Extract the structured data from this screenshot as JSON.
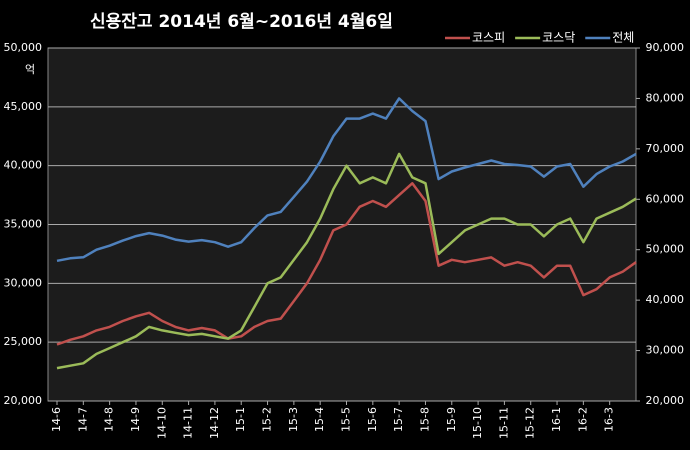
{
  "chart_data": {
    "type": "line",
    "title": "신용잔고 2014년 6월~2016년 4월6일",
    "ylabel": "억",
    "categories": [
      "14-6",
      null,
      "14-7",
      null,
      "14-8",
      null,
      "14-9",
      null,
      "14-10",
      null,
      "14-11",
      null,
      "14-12",
      null,
      "15-1",
      null,
      "15-2",
      null,
      "15-3",
      null,
      "15-4",
      null,
      "15-5",
      null,
      "15-6",
      null,
      "15-7",
      null,
      "15-8",
      null,
      "15-9",
      null,
      "15-10",
      null,
      "15-11",
      null,
      "15-12",
      null,
      "16-1",
      null,
      "16-2",
      null,
      "16-3",
      null,
      null
    ],
    "series": [
      {
        "name": "코스피",
        "color": "#c0504d",
        "values": [
          24800,
          25200,
          25500,
          26000,
          26300,
          26800,
          27200,
          27500,
          26800,
          26300,
          26000,
          26200,
          26000,
          25300,
          25500,
          26300,
          26800,
          27000,
          28500,
          30000,
          32000,
          34500,
          35000,
          36500,
          37000,
          36500,
          37500,
          38500,
          37000,
          31500,
          32000,
          31800,
          32000,
          32200,
          31500,
          31800,
          31500,
          30500,
          31500,
          31500,
          29000,
          29500,
          30500,
          31000,
          31800
        ]
      },
      {
        "name": "코스닥",
        "color": "#9bbb59",
        "values": [
          22800,
          23000,
          23200,
          24000,
          24500,
          25000,
          25500,
          26300,
          26000,
          25800,
          25600,
          25700,
          25500,
          25300,
          26000,
          28000,
          30000,
          30500,
          32000,
          33500,
          35500,
          38000,
          40000,
          38500,
          39000,
          38500,
          41000,
          39000,
          38500,
          32500,
          33500,
          34500,
          35000,
          35500,
          35500,
          35000,
          35000,
          34000,
          35000,
          35500,
          33500,
          35500,
          36000,
          36500,
          37200
        ]
      },
      {
        "name": "전체",
        "color": "#4f81bd",
        "axis": "y2",
        "values": [
          47800,
          48300,
          48500,
          50000,
          50800,
          51800,
          52700,
          53300,
          52800,
          52000,
          51600,
          51900,
          51500,
          50600,
          51500,
          54300,
          56800,
          57500,
          60500,
          63500,
          67500,
          72500,
          76000,
          76000,
          77000,
          76000,
          80000,
          77500,
          75500,
          64000,
          65500,
          66300,
          67000,
          67700,
          67000,
          66800,
          66500,
          64500,
          66500,
          67000,
          62500,
          65000,
          66500,
          67500,
          69000
        ]
      }
    ],
    "ylim": [
      20000,
      50000
    ],
    "yticks": [
      {
        "value": 20000,
        "label": "20,000"
      },
      {
        "value": 25000,
        "label": "25,000"
      },
      {
        "value": 30000,
        "label": "30,000"
      },
      {
        "value": 35000,
        "label": "35,000"
      },
      {
        "value": 40000,
        "label": "40,000"
      },
      {
        "value": 45000,
        "label": "45,000"
      },
      {
        "value": 50000,
        "label": "50,000"
      }
    ],
    "y2lim": [
      20000,
      90000
    ],
    "y2ticks": [
      {
        "value": 20000,
        "label": "20,000"
      },
      {
        "value": 30000,
        "label": "30,000"
      },
      {
        "value": 40000,
        "label": "40,000"
      },
      {
        "value": 50000,
        "label": "50,000"
      },
      {
        "value": 60000,
        "label": "60,000"
      },
      {
        "value": 70000,
        "label": "70,000"
      },
      {
        "value": 80000,
        "label": "80,000"
      },
      {
        "value": 90000,
        "label": "90,000"
      }
    ],
    "grid": true,
    "legend": "top-right"
  }
}
